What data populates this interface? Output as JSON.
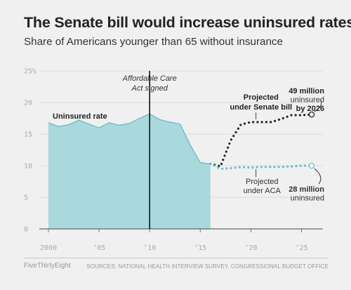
{
  "title": "The Senate bill would increase uninsured rates",
  "subtitle": "Share of Americans younger than 65 without insurance",
  "footer": {
    "brand": "FiveThirtyEight",
    "sources": "SOURCES: NATIONAL HEALTH INTERVIEW SURVEY, CONGRESSIONAL BUDGET OFFICE"
  },
  "colors": {
    "area_fill": "#a9d8dd",
    "area_stroke": "#5fb8c0",
    "senate": "#222222",
    "aca": "#62c0c6",
    "event_line": "#111111",
    "background": "#f0f0f0"
  },
  "chart_data": {
    "type": "area",
    "xlim": [
      1999,
      2027
    ],
    "ylim": [
      0,
      25
    ],
    "x_ticks": [
      2000,
      2005,
      2010,
      2015,
      2020,
      2025
    ],
    "x_tick_labels": [
      "2000",
      "’05",
      "’10",
      "’15",
      "’20",
      "’25"
    ],
    "y_ticks": [
      0,
      5,
      10,
      15,
      20,
      25
    ],
    "y_tick_labels": [
      "0",
      "5",
      "10",
      "15",
      "20",
      "25%"
    ],
    "grid": true,
    "series": [
      {
        "name": "Uninsured rate",
        "style": "area",
        "x": [
          2000,
          2001,
          2002,
          2003,
          2004,
          2005,
          2006,
          2007,
          2008,
          2009,
          2010,
          2011,
          2012,
          2013,
          2014,
          2015,
          2016
        ],
        "y": [
          16.8,
          16.2,
          16.5,
          17.2,
          16.6,
          16.0,
          16.8,
          16.4,
          16.7,
          17.5,
          18.2,
          17.3,
          16.9,
          16.6,
          13.3,
          10.5,
          10.3
        ]
      },
      {
        "name": "Projected under Senate bill",
        "style": "dotted",
        "x": [
          2016,
          2017,
          2018,
          2019,
          2020,
          2021,
          2022,
          2023,
          2024,
          2025,
          2026
        ],
        "y": [
          10.3,
          9.9,
          14.0,
          16.5,
          16.9,
          16.9,
          16.9,
          17.4,
          18.0,
          18.0,
          18.1
        ]
      },
      {
        "name": "Projected under ACA",
        "style": "dotted",
        "x": [
          2016,
          2017,
          2018,
          2019,
          2020,
          2021,
          2022,
          2023,
          2024,
          2025,
          2026
        ],
        "y": [
          10.3,
          9.5,
          9.6,
          9.8,
          9.7,
          9.8,
          9.8,
          9.8,
          9.9,
          10.0,
          10.0
        ]
      }
    ],
    "event": {
      "x": 2010,
      "label_lines": [
        "Affordable Care",
        "Act signed"
      ]
    },
    "labels": {
      "area": "Uninsured rate",
      "senate": [
        "Projected",
        "under Senate bill"
      ],
      "aca": [
        "Projected",
        "under ACA"
      ],
      "senate_end": [
        "49 million",
        "uninsured",
        "by 2026"
      ],
      "aca_end": [
        "28 million",
        "uninsured"
      ]
    }
  }
}
